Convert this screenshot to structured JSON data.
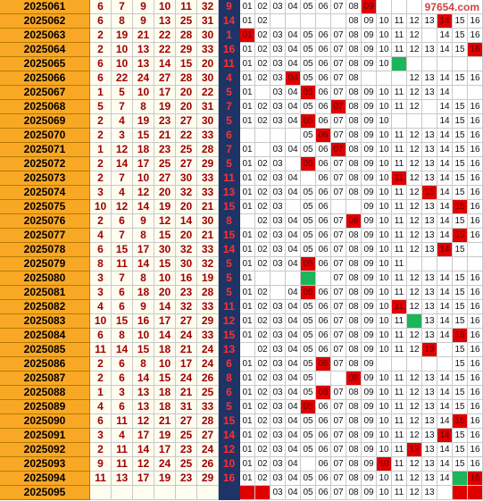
{
  "watermark": "97654.com",
  "rows": [
    {
      "period": "2025061",
      "reds": [
        "6",
        "7",
        "9",
        "10",
        "11",
        "32"
      ],
      "blue": "9",
      "trend": [
        "01",
        "02",
        "03",
        "04",
        "05",
        "06",
        "07",
        "08",
        "09",
        null,
        null,
        null,
        null,
        null,
        null,
        null
      ],
      "hit": [
        8
      ],
      "green": []
    },
    {
      "period": "2025062",
      "reds": [
        "6",
        "8",
        "9",
        "13",
        "25",
        "31"
      ],
      "blue": "14",
      "trend": [
        "01",
        "02",
        null,
        null,
        null,
        null,
        null,
        "08",
        "09",
        "10",
        "11",
        "12",
        "13",
        "14",
        "15",
        "16"
      ],
      "hit": [
        13
      ],
      "green": []
    },
    {
      "period": "2025063",
      "reds": [
        "2",
        "19",
        "21",
        "22",
        "28",
        "30"
      ],
      "blue": "1",
      "trend": [
        "01",
        "02",
        "03",
        "04",
        "05",
        "06",
        "07",
        "08",
        "09",
        "10",
        "11",
        "12",
        null,
        "14",
        "15",
        "16"
      ],
      "hit": [
        0
      ],
      "green": []
    },
    {
      "period": "2025064",
      "reds": [
        "2",
        "10",
        "13",
        "22",
        "29",
        "33"
      ],
      "blue": "16",
      "trend": [
        "01",
        "02",
        "03",
        "04",
        "05",
        "06",
        "07",
        "08",
        "09",
        "10",
        "11",
        "12",
        "13",
        "14",
        "15",
        "16"
      ],
      "hit": [
        15
      ],
      "green": []
    },
    {
      "period": "2025065",
      "reds": [
        "6",
        "10",
        "13",
        "14",
        "15",
        "20"
      ],
      "blue": "11",
      "trend": [
        "01",
        "02",
        "03",
        "04",
        "05",
        "06",
        "07",
        "08",
        "09",
        "10",
        null,
        null,
        null,
        null,
        null,
        null
      ],
      "hit": [],
      "green": [
        10
      ]
    },
    {
      "period": "2025066",
      "reds": [
        "6",
        "22",
        "24",
        "27",
        "28",
        "30"
      ],
      "blue": "4",
      "trend": [
        "01",
        "02",
        "03",
        "04",
        "05",
        "06",
        "07",
        "08",
        null,
        null,
        null,
        "12",
        "13",
        "14",
        "15",
        "16"
      ],
      "hit": [
        3
      ],
      "green": []
    },
    {
      "period": "2025067",
      "reds": [
        "1",
        "5",
        "10",
        "17",
        "20",
        "22"
      ],
      "blue": "5",
      "trend": [
        "01",
        null,
        "03",
        "04",
        "05",
        "06",
        "07",
        "08",
        "09",
        "10",
        "11",
        "12",
        "13",
        "14",
        null,
        null
      ],
      "hit": [
        4
      ],
      "green": []
    },
    {
      "period": "2025068",
      "reds": [
        "5",
        "7",
        "8",
        "19",
        "20",
        "31"
      ],
      "blue": "7",
      "trend": [
        "01",
        "02",
        "03",
        "04",
        "05",
        "06",
        "07",
        "08",
        "09",
        "10",
        "11",
        "12",
        null,
        "14",
        "15",
        "16"
      ],
      "hit": [
        6
      ],
      "green": []
    },
    {
      "period": "2025069",
      "reds": [
        "2",
        "4",
        "19",
        "23",
        "27",
        "30"
      ],
      "blue": "5",
      "trend": [
        "01",
        "02",
        "03",
        "04",
        "05",
        "06",
        "07",
        "08",
        "09",
        "10",
        null,
        null,
        null,
        "14",
        "15",
        "16"
      ],
      "hit": [
        4
      ],
      "green": []
    },
    {
      "period": "2025070",
      "reds": [
        "2",
        "3",
        "15",
        "21",
        "22",
        "33"
      ],
      "blue": "6",
      "trend": [
        null,
        null,
        null,
        null,
        "05",
        "06",
        "07",
        "08",
        "09",
        "10",
        "11",
        "12",
        "13",
        "14",
        "15",
        "16"
      ],
      "hit": [
        5
      ],
      "green": []
    },
    {
      "period": "2025071",
      "reds": [
        "1",
        "12",
        "18",
        "23",
        "25",
        "28"
      ],
      "blue": "7",
      "trend": [
        "01",
        null,
        "03",
        "04",
        "05",
        "06",
        "07",
        "08",
        "09",
        "10",
        "11",
        "12",
        "13",
        "14",
        "15",
        "16"
      ],
      "hit": [
        6
      ],
      "green": []
    },
    {
      "period": "2025072",
      "reds": [
        "2",
        "14",
        "17",
        "25",
        "27",
        "29"
      ],
      "blue": "5",
      "trend": [
        "01",
        "02",
        "03",
        null,
        "05",
        "06",
        "07",
        "08",
        "09",
        "10",
        "11",
        "12",
        "13",
        "14",
        "15",
        "16"
      ],
      "hit": [
        4
      ],
      "green": []
    },
    {
      "period": "2025073",
      "reds": [
        "2",
        "7",
        "10",
        "27",
        "30",
        "33"
      ],
      "blue": "11",
      "trend": [
        "01",
        "02",
        "03",
        "04",
        null,
        "06",
        "07",
        "08",
        "09",
        "10",
        "11",
        "12",
        "13",
        "14",
        "15",
        "16"
      ],
      "hit": [
        10
      ],
      "green": []
    },
    {
      "period": "2025074",
      "reds": [
        "3",
        "4",
        "12",
        "20",
        "32",
        "33"
      ],
      "blue": "13",
      "trend": [
        "01",
        "02",
        "03",
        "04",
        "05",
        "06",
        "07",
        "08",
        "09",
        "10",
        "11",
        "12",
        "13",
        "14",
        "15",
        "16"
      ],
      "hit": [
        12
      ],
      "green": []
    },
    {
      "period": "2025075",
      "reds": [
        "10",
        "12",
        "14",
        "19",
        "20",
        "21"
      ],
      "blue": "15",
      "trend": [
        "01",
        "02",
        "03",
        null,
        "05",
        "06",
        null,
        null,
        "09",
        "10",
        "11",
        "12",
        "13",
        "14",
        "15",
        "16"
      ],
      "hit": [
        14
      ],
      "green": []
    },
    {
      "period": "2025076",
      "reds": [
        "2",
        "6",
        "9",
        "12",
        "14",
        "30"
      ],
      "blue": "8",
      "trend": [
        null,
        "02",
        "03",
        "04",
        "05",
        "06",
        "07",
        "08",
        "09",
        "10",
        "11",
        "12",
        "13",
        "14",
        "15",
        "16"
      ],
      "hit": [
        7
      ],
      "green": []
    },
    {
      "period": "2025077",
      "reds": [
        "4",
        "7",
        "8",
        "15",
        "20",
        "21"
      ],
      "blue": "15",
      "trend": [
        "01",
        "02",
        "03",
        "04",
        "05",
        "06",
        "07",
        "08",
        "09",
        "10",
        "11",
        "12",
        "13",
        "14",
        "15",
        "16"
      ],
      "hit": [
        14
      ],
      "green": []
    },
    {
      "period": "2025078",
      "reds": [
        "6",
        "15",
        "17",
        "30",
        "32",
        "33"
      ],
      "blue": "14",
      "trend": [
        "01",
        "02",
        "03",
        "04",
        "05",
        "06",
        "07",
        "08",
        "09",
        "10",
        "11",
        "12",
        "13",
        "14",
        "15",
        null
      ],
      "hit": [
        13
      ],
      "green": []
    },
    {
      "period": "2025079",
      "reds": [
        "8",
        "11",
        "14",
        "15",
        "30",
        "32"
      ],
      "blue": "5",
      "trend": [
        "01",
        "02",
        "03",
        "04",
        "05",
        "06",
        "07",
        "08",
        "09",
        "10",
        "11",
        null,
        null,
        null,
        null,
        null
      ],
      "hit": [
        4
      ],
      "green": []
    },
    {
      "period": "2025080",
      "reds": [
        "3",
        "7",
        "8",
        "10",
        "16",
        "19"
      ],
      "blue": "5",
      "trend": [
        "01",
        null,
        null,
        null,
        null,
        null,
        "07",
        "08",
        "09",
        "10",
        "11",
        "12",
        "13",
        "14",
        "15",
        "16"
      ],
      "hit": [],
      "green": [
        4
      ]
    },
    {
      "period": "2025081",
      "reds": [
        "3",
        "6",
        "18",
        "20",
        "23",
        "28"
      ],
      "blue": "5",
      "trend": [
        "01",
        "02",
        null,
        "04",
        "05",
        "06",
        "07",
        "08",
        "09",
        "10",
        "11",
        "12",
        "13",
        "14",
        "15",
        "16"
      ],
      "hit": [
        4
      ],
      "green": []
    },
    {
      "period": "2025082",
      "reds": [
        "4",
        "6",
        "9",
        "14",
        "32",
        "33"
      ],
      "blue": "11",
      "trend": [
        "01",
        "02",
        "03",
        "04",
        "05",
        "06",
        "07",
        "08",
        "09",
        "10",
        "11",
        "12",
        "13",
        "14",
        "15",
        "16"
      ],
      "hit": [
        10
      ],
      "green": []
    },
    {
      "period": "2025083",
      "reds": [
        "10",
        "15",
        "16",
        "17",
        "27",
        "29"
      ],
      "blue": "12",
      "trend": [
        "01",
        "02",
        "03",
        "04",
        "05",
        "06",
        "07",
        "08",
        "09",
        "10",
        "11",
        null,
        "13",
        "14",
        "15",
        "16"
      ],
      "hit": [],
      "green": [
        11
      ]
    },
    {
      "period": "2025084",
      "reds": [
        "6",
        "8",
        "10",
        "14",
        "24",
        "33"
      ],
      "blue": "15",
      "trend": [
        "01",
        "02",
        "03",
        "04",
        "05",
        "06",
        "07",
        "08",
        "09",
        "10",
        "11",
        "12",
        "13",
        "14",
        "15",
        "16"
      ],
      "hit": [
        14
      ],
      "green": []
    },
    {
      "period": "2025085",
      "reds": [
        "11",
        "14",
        "15",
        "18",
        "21",
        "24"
      ],
      "blue": "13",
      "trend": [
        null,
        "02",
        "03",
        "04",
        "05",
        "06",
        "07",
        "08",
        "09",
        "10",
        "11",
        "12",
        "13",
        null,
        "15",
        "16"
      ],
      "hit": [
        12
      ],
      "green": []
    },
    {
      "period": "2025086",
      "reds": [
        "2",
        "6",
        "8",
        "10",
        "17",
        "24"
      ],
      "blue": "6",
      "trend": [
        "01",
        "02",
        "03",
        "04",
        "05",
        "06",
        "07",
        "08",
        "09",
        null,
        null,
        null,
        null,
        null,
        "15",
        "16"
      ],
      "hit": [
        5
      ],
      "green": []
    },
    {
      "period": "2025087",
      "reds": [
        "2",
        "6",
        "14",
        "15",
        "24",
        "26"
      ],
      "blue": "8",
      "trend": [
        "01",
        "02",
        "03",
        "04",
        "05",
        null,
        null,
        "08",
        "09",
        "10",
        "11",
        "12",
        "13",
        "14",
        "15",
        "16"
      ],
      "hit": [
        7
      ],
      "green": []
    },
    {
      "period": "2025088",
      "reds": [
        "1",
        "3",
        "13",
        "18",
        "21",
        "25"
      ],
      "blue": "6",
      "trend": [
        "01",
        "02",
        "03",
        "04",
        "05",
        "06",
        "07",
        "08",
        "09",
        "10",
        "11",
        "12",
        "13",
        "14",
        "15",
        "16"
      ],
      "hit": [
        5
      ],
      "green": []
    },
    {
      "period": "2025089",
      "reds": [
        "4",
        "6",
        "13",
        "18",
        "31",
        "33"
      ],
      "blue": "5",
      "trend": [
        "01",
        "02",
        "03",
        "04",
        "05",
        "06",
        "07",
        "08",
        "09",
        "10",
        "11",
        "12",
        "13",
        "14",
        "15",
        "16"
      ],
      "hit": [
        4
      ],
      "green": []
    },
    {
      "period": "2025090",
      "reds": [
        "6",
        "11",
        "12",
        "21",
        "27",
        "28"
      ],
      "blue": "15",
      "trend": [
        "01",
        "02",
        "03",
        "04",
        "05",
        "06",
        "07",
        "08",
        "09",
        "10",
        "11",
        "12",
        "13",
        "14",
        "15",
        "16"
      ],
      "hit": [
        14
      ],
      "green": []
    },
    {
      "period": "2025091",
      "reds": [
        "3",
        "4",
        "17",
        "19",
        "25",
        "27"
      ],
      "blue": "14",
      "trend": [
        "01",
        "02",
        "03",
        "04",
        "05",
        "06",
        "07",
        "08",
        "09",
        "10",
        "11",
        "12",
        "13",
        "14",
        "15",
        "16"
      ],
      "hit": [
        13
      ],
      "green": []
    },
    {
      "period": "2025092",
      "reds": [
        "2",
        "11",
        "14",
        "17",
        "23",
        "24"
      ],
      "blue": "12",
      "trend": [
        "01",
        "02",
        "03",
        "04",
        "05",
        "06",
        "07",
        "08",
        "09",
        "10",
        "11",
        "12",
        "13",
        "14",
        "15",
        "16"
      ],
      "hit": [
        11
      ],
      "green": []
    },
    {
      "period": "2025093",
      "reds": [
        "9",
        "11",
        "12",
        "24",
        "25",
        "26"
      ],
      "blue": "10",
      "trend": [
        "01",
        "02",
        "03",
        "04",
        null,
        "06",
        "07",
        "08",
        "09",
        "10",
        "11",
        "12",
        "13",
        "14",
        "15",
        "16"
      ],
      "hit": [
        9
      ],
      "green": []
    },
    {
      "period": "2025094",
      "reds": [
        "11",
        "13",
        "17",
        "19",
        "23",
        "29"
      ],
      "blue": "16",
      "trend": [
        "01",
        "02",
        "03",
        "04",
        "05",
        "06",
        "07",
        "08",
        "09",
        "10",
        "11",
        "12",
        "13",
        "14",
        null,
        "16"
      ],
      "hit": [
        15
      ],
      "green": [
        14
      ]
    },
    {
      "period": "2025095",
      "reds": [
        null,
        null,
        null,
        null,
        null,
        null
      ],
      "blue": null,
      "trend": [
        null,
        null,
        "03",
        "04",
        "05",
        "06",
        "07",
        "08",
        "09",
        "10",
        "11",
        "12",
        "13",
        null,
        null,
        null
      ],
      "hit": [
        0,
        1,
        14,
        15
      ],
      "green": []
    }
  ]
}
